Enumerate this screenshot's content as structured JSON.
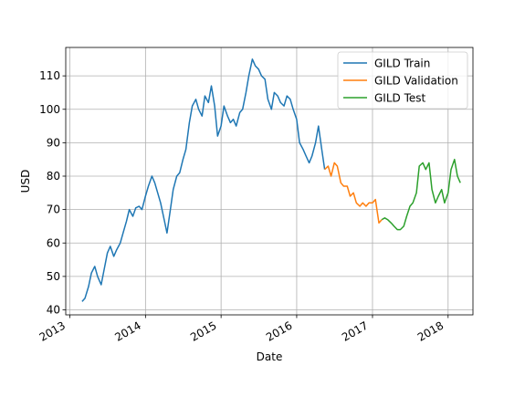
{
  "chart_data": {
    "type": "line",
    "title": "",
    "xlabel": "Date",
    "ylabel": "USD",
    "x_axis_type": "date",
    "xlim": [
      "2012-12-12",
      "2018-05-01"
    ],
    "ylim": [
      38.5,
      118.5
    ],
    "x_ticks": [
      {
        "date": "2013-01-01",
        "label": "2013"
      },
      {
        "date": "2014-01-01",
        "label": "2014"
      },
      {
        "date": "2015-01-01",
        "label": "2015"
      },
      {
        "date": "2016-01-01",
        "label": "2016"
      },
      {
        "date": "2017-01-01",
        "label": "2017"
      },
      {
        "date": "2018-01-01",
        "label": "2018"
      }
    ],
    "y_ticks": [
      40,
      50,
      60,
      70,
      80,
      90,
      100,
      110
    ],
    "grid": true,
    "legend_position": "top-right",
    "series": [
      {
        "name": "GILD Train",
        "color": "#1f77b4",
        "points": [
          [
            "2013-03-01",
            42.5
          ],
          [
            "2013-03-15",
            43.5
          ],
          [
            "2013-04-01",
            47.0
          ],
          [
            "2013-04-15",
            51.0
          ],
          [
            "2013-05-01",
            53.0
          ],
          [
            "2013-05-15",
            50.0
          ],
          [
            "2013-06-01",
            47.5
          ],
          [
            "2013-06-15",
            52.0
          ],
          [
            "2013-07-01",
            57.0
          ],
          [
            "2013-07-15",
            59.0
          ],
          [
            "2013-08-01",
            56.0
          ],
          [
            "2013-08-15",
            58.0
          ],
          [
            "2013-09-01",
            60.0
          ],
          [
            "2013-09-15",
            63.0
          ],
          [
            "2013-10-01",
            66.5
          ],
          [
            "2013-10-15",
            70.0
          ],
          [
            "2013-11-01",
            68.0
          ],
          [
            "2013-11-15",
            70.5
          ],
          [
            "2013-12-01",
            71.0
          ],
          [
            "2013-12-15",
            70.0
          ],
          [
            "2014-01-01",
            74.0
          ],
          [
            "2014-01-15",
            77.0
          ],
          [
            "2014-02-01",
            80.0
          ],
          [
            "2014-02-15",
            78.0
          ],
          [
            "2014-03-01",
            75.0
          ],
          [
            "2014-03-15",
            72.0
          ],
          [
            "2014-04-01",
            67.0
          ],
          [
            "2014-04-15",
            63.0
          ],
          [
            "2014-05-01",
            70.0
          ],
          [
            "2014-05-15",
            76.0
          ],
          [
            "2014-06-01",
            80.0
          ],
          [
            "2014-06-15",
            81.0
          ],
          [
            "2014-07-01",
            85.0
          ],
          [
            "2014-07-15",
            88.0
          ],
          [
            "2014-08-01",
            96.0
          ],
          [
            "2014-08-15",
            101.0
          ],
          [
            "2014-09-01",
            103.0
          ],
          [
            "2014-09-15",
            100.0
          ],
          [
            "2014-10-01",
            98.0
          ],
          [
            "2014-10-15",
            104.0
          ],
          [
            "2014-11-01",
            102.0
          ],
          [
            "2014-11-15",
            107.0
          ],
          [
            "2014-12-01",
            101.0
          ],
          [
            "2014-12-15",
            92.0
          ],
          [
            "2015-01-01",
            95.0
          ],
          [
            "2015-01-15",
            101.0
          ],
          [
            "2015-02-01",
            98.0
          ],
          [
            "2015-02-15",
            96.0
          ],
          [
            "2015-03-01",
            97.0
          ],
          [
            "2015-03-15",
            95.0
          ],
          [
            "2015-04-01",
            99.0
          ],
          [
            "2015-04-15",
            100.0
          ],
          [
            "2015-05-01",
            105.0
          ],
          [
            "2015-05-15",
            110.0
          ],
          [
            "2015-06-01",
            115.0
          ],
          [
            "2015-06-15",
            113.0
          ],
          [
            "2015-07-01",
            112.0
          ],
          [
            "2015-07-15",
            110.0
          ],
          [
            "2015-08-01",
            109.0
          ],
          [
            "2015-08-15",
            103.0
          ],
          [
            "2015-09-01",
            100.0
          ],
          [
            "2015-09-15",
            105.0
          ],
          [
            "2015-10-01",
            104.0
          ],
          [
            "2015-10-15",
            102.0
          ],
          [
            "2015-11-01",
            101.0
          ],
          [
            "2015-11-15",
            104.0
          ],
          [
            "2015-12-01",
            103.0
          ],
          [
            "2015-12-15",
            100.0
          ],
          [
            "2016-01-01",
            97.0
          ],
          [
            "2016-01-15",
            90.0
          ],
          [
            "2016-02-01",
            88.0
          ],
          [
            "2016-02-15",
            86.0
          ],
          [
            "2016-03-01",
            84.0
          ],
          [
            "2016-03-15",
            86.0
          ],
          [
            "2016-04-01",
            90.0
          ],
          [
            "2016-04-15",
            95.0
          ],
          [
            "2016-05-01",
            88.0
          ],
          [
            "2016-05-15",
            82.0
          ]
        ]
      },
      {
        "name": "GILD Validation",
        "color": "#ff7f0e",
        "points": [
          [
            "2016-05-15",
            82.0
          ],
          [
            "2016-06-01",
            83.0
          ],
          [
            "2016-06-15",
            80.0
          ],
          [
            "2016-07-01",
            84.0
          ],
          [
            "2016-07-15",
            83.0
          ],
          [
            "2016-08-01",
            78.0
          ],
          [
            "2016-08-15",
            77.0
          ],
          [
            "2016-09-01",
            77.0
          ],
          [
            "2016-09-15",
            74.0
          ],
          [
            "2016-10-01",
            75.0
          ],
          [
            "2016-10-15",
            72.0
          ],
          [
            "2016-11-01",
            71.0
          ],
          [
            "2016-11-15",
            72.0
          ],
          [
            "2016-12-01",
            71.0
          ],
          [
            "2016-12-15",
            72.0
          ],
          [
            "2017-01-01",
            72.0
          ],
          [
            "2017-01-15",
            73.0
          ],
          [
            "2017-02-01",
            66.0
          ],
          [
            "2017-02-15",
            67.0
          ]
        ]
      },
      {
        "name": "GILD Test",
        "color": "#2ca02c",
        "points": [
          [
            "2017-02-15",
            67.0
          ],
          [
            "2017-03-01",
            67.5
          ],
          [
            "2017-03-15",
            67.0
          ],
          [
            "2017-04-01",
            66.0
          ],
          [
            "2017-04-15",
            65.0
          ],
          [
            "2017-05-01",
            64.0
          ],
          [
            "2017-05-15",
            64.0
          ],
          [
            "2017-06-01",
            65.0
          ],
          [
            "2017-06-15",
            68.0
          ],
          [
            "2017-07-01",
            71.0
          ],
          [
            "2017-07-15",
            72.0
          ],
          [
            "2017-08-01",
            75.0
          ],
          [
            "2017-08-15",
            83.0
          ],
          [
            "2017-09-01",
            84.0
          ],
          [
            "2017-09-15",
            82.0
          ],
          [
            "2017-10-01",
            84.0
          ],
          [
            "2017-10-15",
            76.0
          ],
          [
            "2017-11-01",
            72.0
          ],
          [
            "2017-11-15",
            74.0
          ],
          [
            "2017-12-01",
            76.0
          ],
          [
            "2017-12-15",
            72.0
          ],
          [
            "2018-01-01",
            75.0
          ],
          [
            "2018-01-15",
            82.0
          ],
          [
            "2018-02-01",
            85.0
          ],
          [
            "2018-02-15",
            80.0
          ],
          [
            "2018-03-01",
            78.0
          ]
        ]
      }
    ]
  }
}
